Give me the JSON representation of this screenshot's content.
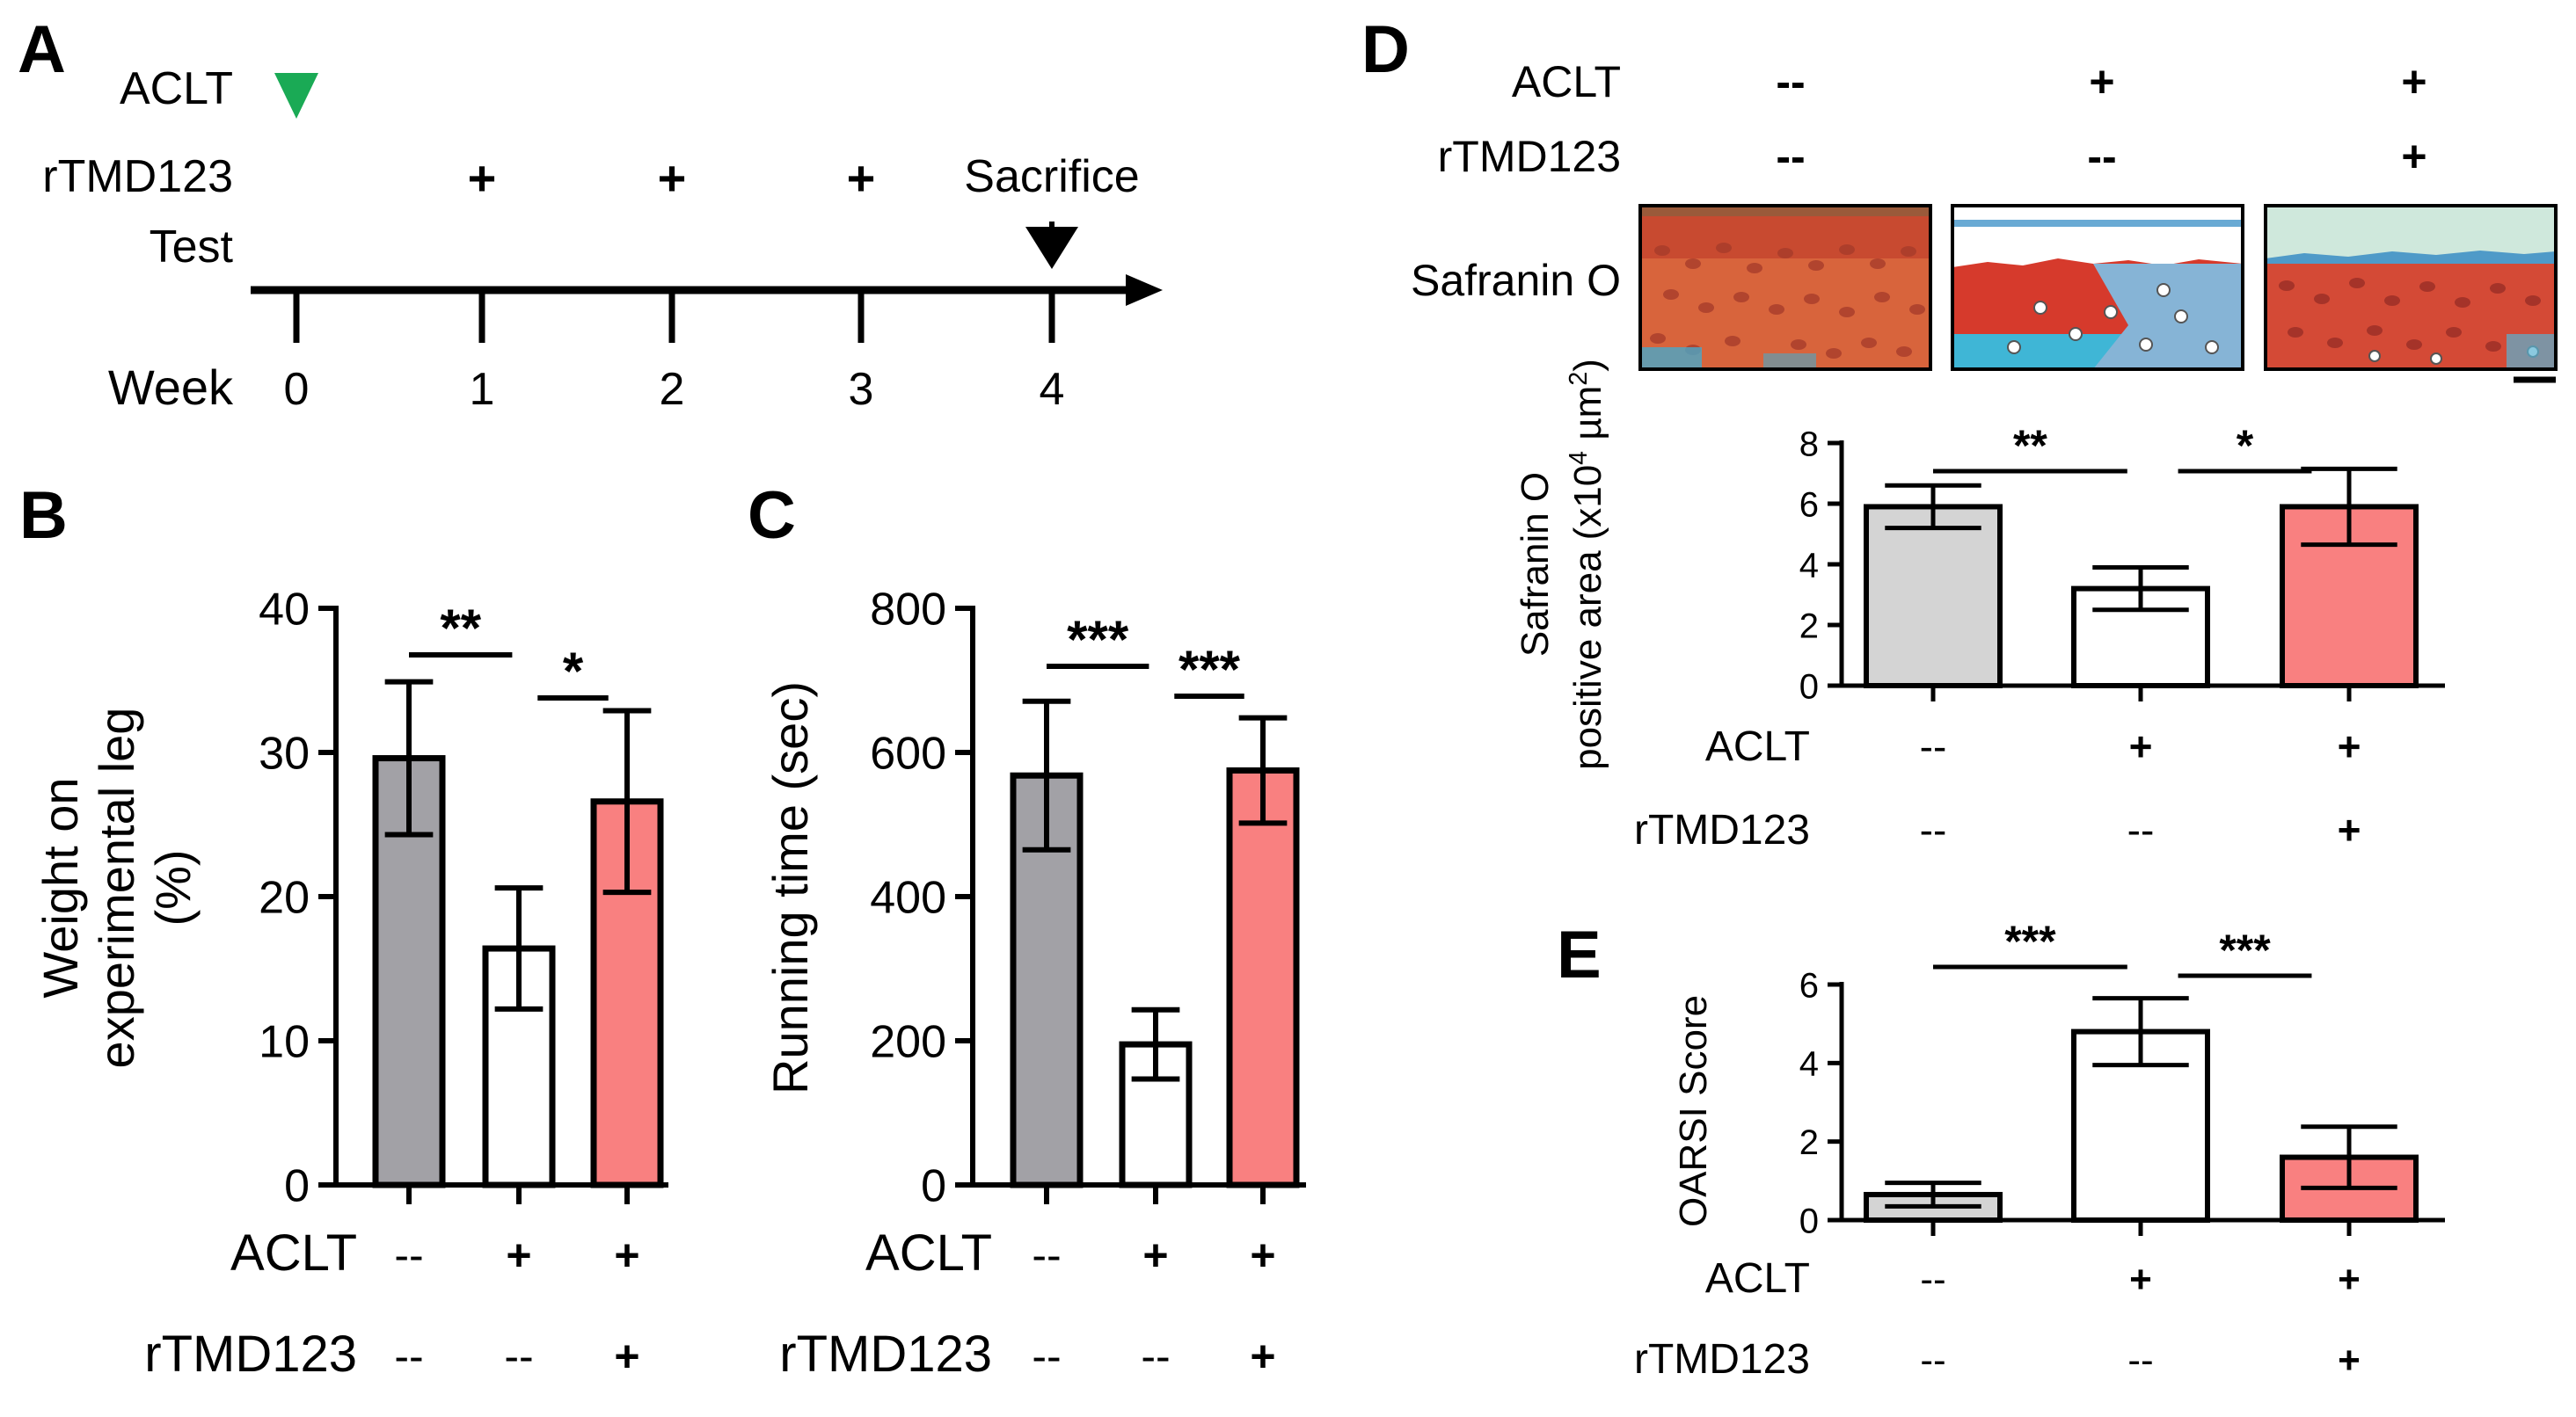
{
  "colors": {
    "axis": "#000000",
    "green_marker": "#1aaa55",
    "gray_dark": "#a2a1a6",
    "gray_light": "#d4d4d4",
    "salmon": "#f98080",
    "white_bar": "#ffffff",
    "safranin_red": "#d63a2c",
    "fast_green": "#3fb6d6"
  },
  "panel_a": {
    "label": "A",
    "rows": {
      "aclt": "ACLT",
      "rtmd": "rTMD123",
      "test": "Test",
      "week": "Week"
    },
    "weeks": [
      "0",
      "1",
      "2",
      "3",
      "4"
    ],
    "plus_marks": [
      "+",
      "+",
      "+"
    ],
    "sacrifice": "Sacrifice",
    "icons": {
      "aclt_marker": "triangle-down-icon",
      "sacrifice_arrow": "arrow-down-icon"
    }
  },
  "panel_d_images": {
    "label": "D",
    "stain_label": "Safranin O",
    "aclt_label": "ACLT",
    "rtmd_label": "rTMD123",
    "aclt": [
      "--",
      "+",
      "+"
    ],
    "rtmd": [
      "--",
      "--",
      "+"
    ]
  },
  "chart_data": [
    {
      "id": "B",
      "label": "B",
      "type": "bar",
      "ylabel": "Weight on experimental leg (%)",
      "ylabel_lines": [
        "Weight on",
        "experimental leg",
        "(%)"
      ],
      "ylim": [
        0,
        40
      ],
      "yticks": [
        "0",
        "10",
        "20",
        "30",
        "40"
      ],
      "categories": [
        "ACLT -- / rTMD123 --",
        "ACLT + / rTMD123 --",
        "ACLT + / rTMD123 +"
      ],
      "values": [
        29.6,
        16.4,
        26.6
      ],
      "errors": [
        5.3,
        4.2,
        6.3
      ],
      "bar_colors": [
        "#a2a1a6",
        "#ffffff",
        "#f98080"
      ],
      "group_rows": {
        "aclt_label": "ACLT",
        "rtmd_label": "rTMD123",
        "aclt": [
          "--",
          "+",
          "+"
        ],
        "rtmd": [
          "--",
          "--",
          "+"
        ]
      },
      "significance": [
        {
          "from": 0,
          "to": 1,
          "text": "**"
        },
        {
          "from": 1,
          "to": 2,
          "text": "*"
        }
      ]
    },
    {
      "id": "C",
      "label": "C",
      "type": "bar",
      "ylabel": "Running time (sec)",
      "ylim": [
        0,
        800
      ],
      "yticks": [
        "0",
        "200",
        "400",
        "600",
        "800"
      ],
      "categories": [
        "ACLT -- / rTMD123 --",
        "ACLT + / rTMD123 --",
        "ACLT + / rTMD123 +"
      ],
      "values": [
        568,
        195,
        575
      ],
      "errors": [
        103,
        48,
        73
      ],
      "bar_colors": [
        "#a2a1a6",
        "#ffffff",
        "#f98080"
      ],
      "group_rows": {
        "aclt_label": "ACLT",
        "rtmd_label": "rTMD123",
        "aclt": [
          "--",
          "+",
          "+"
        ],
        "rtmd": [
          "--",
          "--",
          "+"
        ]
      },
      "significance": [
        {
          "from": 0,
          "to": 1,
          "text": "***"
        },
        {
          "from": 1,
          "to": 2,
          "text": "***"
        }
      ]
    },
    {
      "id": "D",
      "label": "",
      "type": "bar",
      "ylabel": "Safranin O positive area (x10^4 µm^2)",
      "ylabel_line1": "Safranin O",
      "ylabel_line2_parts": [
        "positive area",
        "(x10",
        "4",
        " µm",
        "2",
        ")"
      ],
      "ylim": [
        0,
        8
      ],
      "yticks": [
        "0",
        "2",
        "4",
        "6",
        "8"
      ],
      "categories": [
        "ACLT -- / rTMD123 --",
        "ACLT + / rTMD123 --",
        "ACLT + / rTMD123 +"
      ],
      "values": [
        5.9,
        3.2,
        5.9
      ],
      "errors": [
        0.7,
        0.7,
        1.25
      ],
      "bar_colors": [
        "#d4d4d4",
        "#ffffff",
        "#f98080"
      ],
      "group_rows": {
        "aclt_label": "ACLT",
        "rtmd_label": "rTMD123",
        "aclt": [
          "--",
          "+",
          "+"
        ],
        "rtmd": [
          "--",
          "--",
          "+"
        ]
      },
      "significance": [
        {
          "from": 0,
          "to": 1,
          "text": "**"
        },
        {
          "from": 1,
          "to": 2,
          "text": "*"
        }
      ]
    },
    {
      "id": "E",
      "label": "E",
      "type": "bar",
      "ylabel": "OARSI Score",
      "ylim": [
        0,
        6
      ],
      "yticks": [
        "0",
        "2",
        "4",
        "6"
      ],
      "categories": [
        "ACLT -- / rTMD123 --",
        "ACLT + / rTMD123 --",
        "ACLT + / rTMD123 +"
      ],
      "values": [
        0.65,
        4.8,
        1.6
      ],
      "errors": [
        0.3,
        0.85,
        0.78
      ],
      "bar_colors": [
        "#d4d4d4",
        "#ffffff",
        "#f98080"
      ],
      "group_rows": {
        "aclt_label": "ACLT",
        "rtmd_label": "rTMD123",
        "aclt": [
          "--",
          "+",
          "+"
        ],
        "rtmd": [
          "--",
          "--",
          "+"
        ]
      },
      "significance": [
        {
          "from": 0,
          "to": 1,
          "text": "***"
        },
        {
          "from": 1,
          "to": 2,
          "text": "***"
        }
      ]
    }
  ]
}
